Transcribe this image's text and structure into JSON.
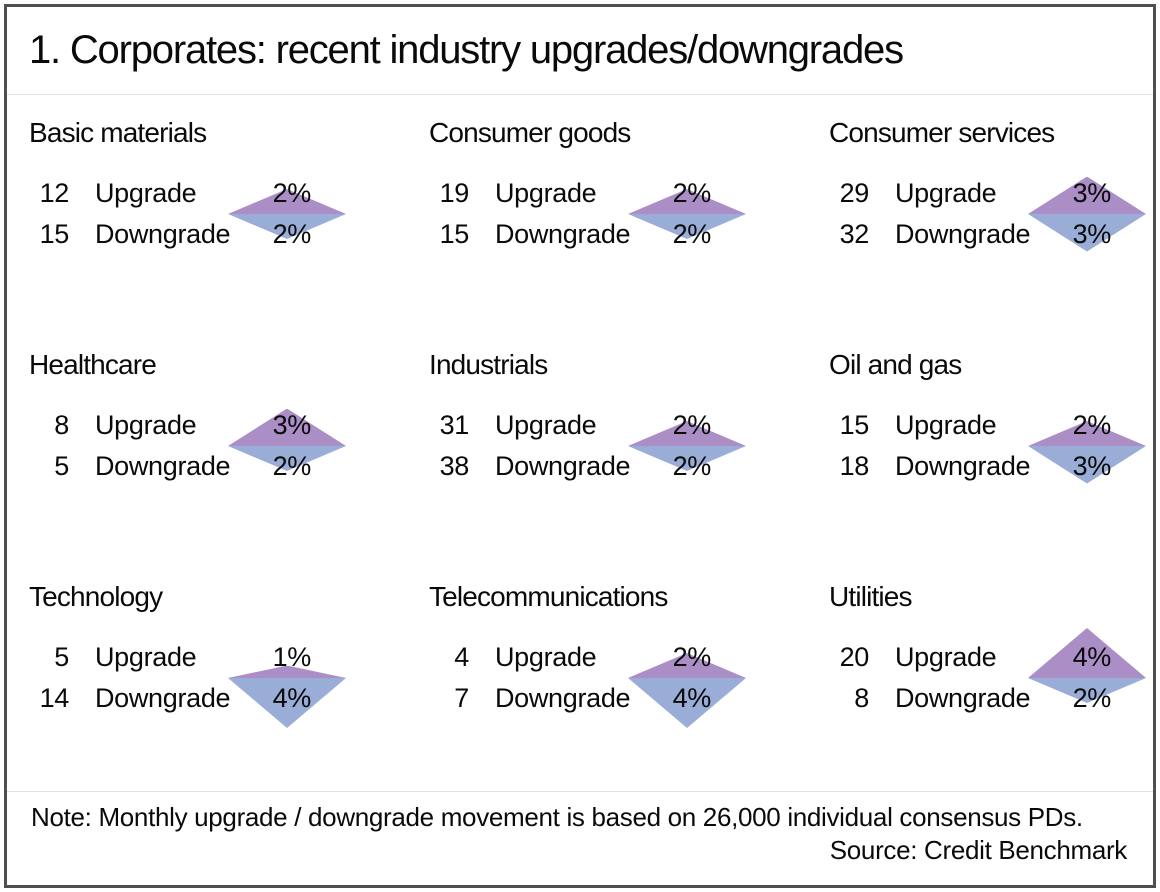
{
  "title": "1. Corporates: recent industry upgrades/downgrades",
  "labels": {
    "upgrade": "Upgrade",
    "downgrade": "Downgrade"
  },
  "note": "Note: Monthly upgrade / downgrade movement is based on 26,000 individual consensus PDs.",
  "source": "Source: Credit Benchmark",
  "colors": {
    "upgrade_triangle": "#ab8ec6",
    "downgrade_triangle": "#9aadd6",
    "frame_border": "#4f4f4f",
    "text": "#0a0a0a"
  },
  "chart_data": {
    "type": "pictogram-grid",
    "title": "1. Corporates: recent industry upgrades/downgrades",
    "legend": "Diamond glyph per industry: upper purple triangle height = monthly upgrade %, lower blue triangle height = monthly downgrade %",
    "pixels_per_percent": 12.5,
    "sections": [
      {
        "name": "Basic materials",
        "upgrade_count": "12",
        "upgrade_pct": 2,
        "upgrade_pct_label": "2%",
        "downgrade_count": "15",
        "downgrade_pct": 2,
        "downgrade_pct_label": "2%"
      },
      {
        "name": "Consumer goods",
        "upgrade_count": "19",
        "upgrade_pct": 2,
        "upgrade_pct_label": "2%",
        "downgrade_count": "15",
        "downgrade_pct": 2,
        "downgrade_pct_label": "2%"
      },
      {
        "name": "Consumer services",
        "upgrade_count": "29",
        "upgrade_pct": 3,
        "upgrade_pct_label": "3%",
        "downgrade_count": "32",
        "downgrade_pct": 3,
        "downgrade_pct_label": "3%"
      },
      {
        "name": "Healthcare",
        "upgrade_count": "8",
        "upgrade_pct": 3,
        "upgrade_pct_label": "3%",
        "downgrade_count": "5",
        "downgrade_pct": 2,
        "downgrade_pct_label": "2%"
      },
      {
        "name": "Industrials",
        "upgrade_count": "31",
        "upgrade_pct": 2,
        "upgrade_pct_label": "2%",
        "downgrade_count": "38",
        "downgrade_pct": 2,
        "downgrade_pct_label": "2%"
      },
      {
        "name": "Oil and gas",
        "upgrade_count": "15",
        "upgrade_pct": 2,
        "upgrade_pct_label": "2%",
        "downgrade_count": "18",
        "downgrade_pct": 3,
        "downgrade_pct_label": "3%"
      },
      {
        "name": "Technology",
        "upgrade_count": "5",
        "upgrade_pct": 1,
        "upgrade_pct_label": "1%",
        "downgrade_count": "14",
        "downgrade_pct": 4,
        "downgrade_pct_label": "4%"
      },
      {
        "name": "Telecommunications",
        "upgrade_count": "4",
        "upgrade_pct": 2,
        "upgrade_pct_label": "2%",
        "downgrade_count": "7",
        "downgrade_pct": 4,
        "downgrade_pct_label": "4%"
      },
      {
        "name": "Utilities",
        "upgrade_count": "20",
        "upgrade_pct": 4,
        "upgrade_pct_label": "4%",
        "downgrade_count": "8",
        "downgrade_pct": 2,
        "downgrade_pct_label": "2%"
      }
    ]
  }
}
